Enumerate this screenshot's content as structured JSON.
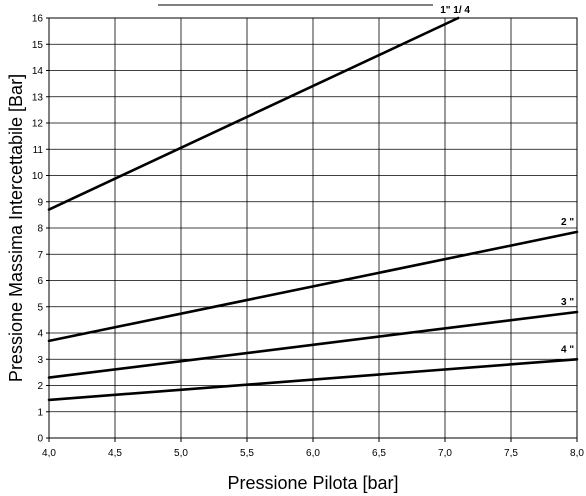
{
  "chart_data": {
    "type": "line",
    "xlabel": "Pressione Pilota [bar]",
    "ylabel": "Pressione Massima Intercettabile [Bar]",
    "xlim": [
      4.0,
      8.0
    ],
    "ylim": [
      0,
      16
    ],
    "x_ticks": [
      "4,0",
      "4,5",
      "5,0",
      "5,5",
      "6,0",
      "6,5",
      "7,0",
      "7,5",
      "8,0"
    ],
    "y_ticks": [
      "0",
      "1",
      "2",
      "3",
      "4",
      "5",
      "6",
      "7",
      "8",
      "9",
      "10",
      "11",
      "12",
      "13",
      "14",
      "15",
      "16"
    ],
    "grid": true,
    "legend": "none",
    "series": [
      {
        "name": "1\" 1/ 4",
        "x": [
          4.0,
          7.1
        ],
        "y": [
          8.7,
          16.0
        ]
      },
      {
        "name": "2 \"",
        "x": [
          4.0,
          8.0
        ],
        "y": [
          3.7,
          7.85
        ]
      },
      {
        "name": "3 \"",
        "x": [
          4.0,
          8.0
        ],
        "y": [
          2.3,
          4.8
        ]
      },
      {
        "name": "4 \"",
        "x": [
          4.0,
          8.0
        ],
        "y": [
          1.45,
          3.0
        ]
      }
    ]
  }
}
